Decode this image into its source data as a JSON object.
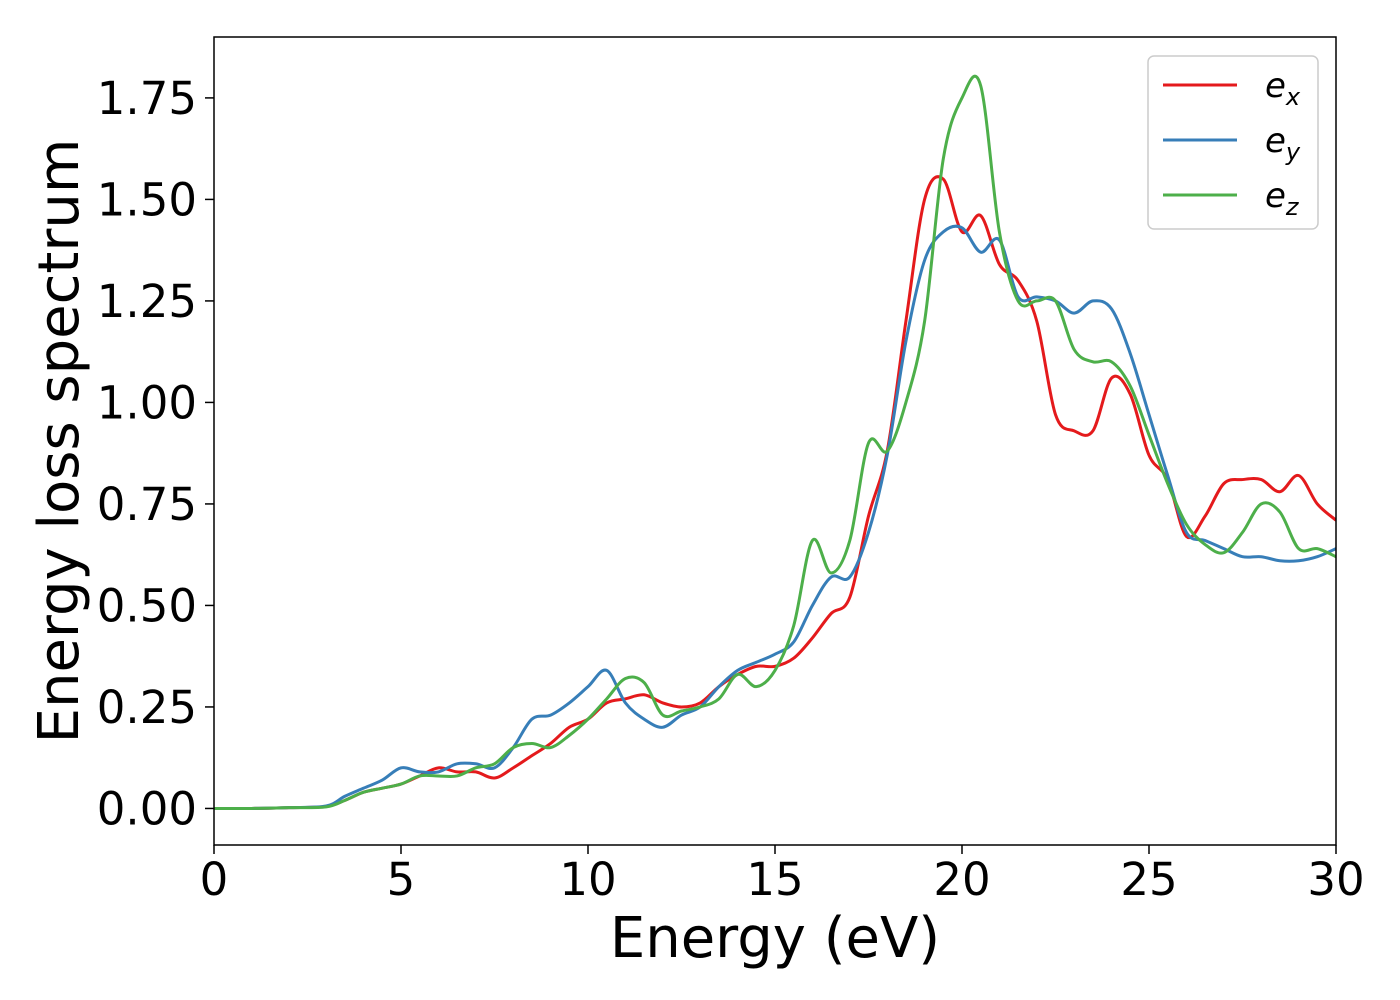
{
  "chart_data": {
    "type": "line",
    "title": "",
    "xlabel": "Energy (eV)",
    "ylabel": "Energy loss spectrum",
    "xlim": [
      0,
      30
    ],
    "ylim": [
      -0.09,
      1.9
    ],
    "xticks": [
      0,
      5,
      10,
      15,
      20,
      25,
      30
    ],
    "xtick_labels": [
      "0",
      "5",
      "10",
      "15",
      "20",
      "25",
      "30"
    ],
    "yticks": [
      0.0,
      0.25,
      0.5,
      0.75,
      1.0,
      1.25,
      1.5,
      1.75
    ],
    "ytick_labels": [
      "0.00",
      "0.25",
      "0.50",
      "0.75",
      "1.00",
      "1.25",
      "1.50",
      "1.75"
    ],
    "grid": false,
    "legend_position": "top-right",
    "x": [
      0,
      1,
      2,
      3,
      3.5,
      4,
      4.5,
      5,
      5.5,
      6,
      6.5,
      7,
      7.5,
      8,
      8.5,
      9,
      9.5,
      10,
      10.5,
      11,
      11.5,
      12,
      12.5,
      13,
      13.5,
      14,
      14.5,
      15,
      15.5,
      16,
      16.5,
      17,
      17.5,
      18,
      18.5,
      19,
      19.5,
      20,
      20.5,
      21,
      21.5,
      22,
      22.5,
      23,
      23.5,
      24,
      24.5,
      25,
      25.5,
      26,
      26.5,
      27,
      27.5,
      28,
      28.5,
      29,
      29.5,
      30
    ],
    "series": [
      {
        "name": "e",
        "subscript": "x",
        "color": "#e41a1c",
        "values": [
          0.0,
          0.0,
          0.002,
          0.005,
          0.02,
          0.04,
          0.05,
          0.06,
          0.08,
          0.1,
          0.09,
          0.09,
          0.075,
          0.1,
          0.13,
          0.16,
          0.2,
          0.22,
          0.26,
          0.27,
          0.28,
          0.26,
          0.25,
          0.26,
          0.3,
          0.33,
          0.35,
          0.35,
          0.37,
          0.42,
          0.48,
          0.52,
          0.72,
          0.88,
          1.2,
          1.5,
          1.55,
          1.42,
          1.46,
          1.34,
          1.3,
          1.2,
          0.97,
          0.93,
          0.93,
          1.06,
          1.02,
          0.87,
          0.81,
          0.67,
          0.72,
          0.8,
          0.81,
          0.81,
          0.78,
          0.82,
          0.75,
          0.71
        ]
      },
      {
        "name": "e",
        "subscript": "y",
        "color": "#377eb8",
        "values": [
          0.0,
          0.0,
          0.002,
          0.006,
          0.03,
          0.05,
          0.07,
          0.1,
          0.09,
          0.09,
          0.11,
          0.11,
          0.1,
          0.15,
          0.22,
          0.23,
          0.26,
          0.3,
          0.34,
          0.26,
          0.22,
          0.2,
          0.23,
          0.25,
          0.3,
          0.34,
          0.36,
          0.38,
          0.41,
          0.5,
          0.57,
          0.57,
          0.68,
          0.87,
          1.15,
          1.35,
          1.42,
          1.43,
          1.37,
          1.4,
          1.26,
          1.26,
          1.25,
          1.22,
          1.25,
          1.23,
          1.12,
          0.97,
          0.82,
          0.68,
          0.66,
          0.64,
          0.62,
          0.62,
          0.61,
          0.61,
          0.62,
          0.64
        ]
      },
      {
        "name": "e",
        "subscript": "z",
        "color": "#4daf4a",
        "values": [
          0.0,
          0.0,
          0.002,
          0.004,
          0.02,
          0.04,
          0.05,
          0.06,
          0.08,
          0.08,
          0.08,
          0.1,
          0.11,
          0.15,
          0.16,
          0.15,
          0.18,
          0.22,
          0.27,
          0.32,
          0.31,
          0.23,
          0.24,
          0.25,
          0.27,
          0.33,
          0.3,
          0.34,
          0.45,
          0.66,
          0.58,
          0.66,
          0.9,
          0.88,
          1.0,
          1.2,
          1.6,
          1.75,
          1.78,
          1.42,
          1.25,
          1.25,
          1.25,
          1.13,
          1.1,
          1.1,
          1.04,
          0.92,
          0.8,
          0.7,
          0.65,
          0.63,
          0.68,
          0.75,
          0.73,
          0.64,
          0.64,
          0.62
        ]
      }
    ]
  }
}
